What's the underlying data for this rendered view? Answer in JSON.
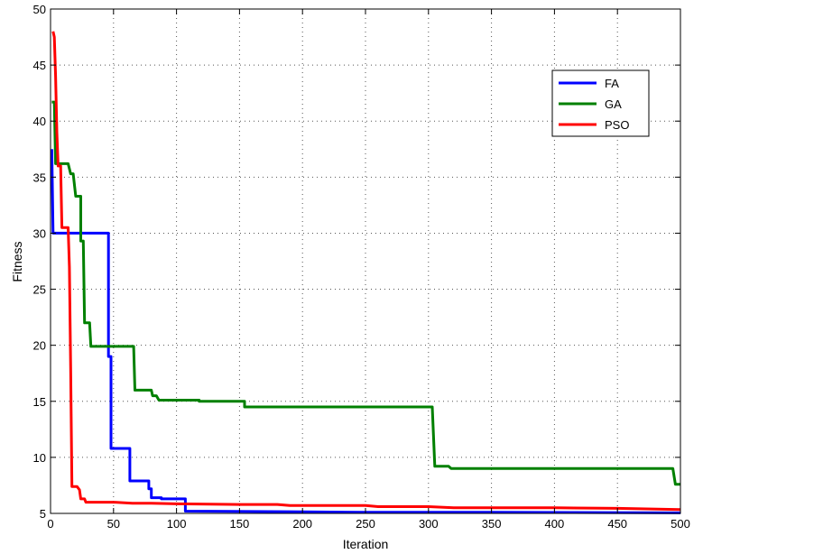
{
  "chart_data": {
    "type": "line",
    "xlabel": "Iteration",
    "ylabel": "Fitness",
    "xlim": [
      0,
      500
    ],
    "ylim": [
      5,
      50
    ],
    "xticks": [
      0,
      50,
      100,
      150,
      200,
      250,
      300,
      350,
      400,
      450,
      500
    ],
    "yticks": [
      5,
      10,
      15,
      20,
      25,
      30,
      35,
      40,
      45,
      50
    ],
    "grid": true,
    "legend_position": "top-right",
    "series": [
      {
        "name": "FA",
        "color": "#0000ff",
        "points": [
          [
            1,
            37.5
          ],
          [
            2,
            30
          ],
          [
            46,
            30
          ],
          [
            46,
            19
          ],
          [
            48,
            19
          ],
          [
            48,
            10.8
          ],
          [
            63,
            10.8
          ],
          [
            63,
            7.9
          ],
          [
            78,
            7.9
          ],
          [
            78,
            7.2
          ],
          [
            80,
            7.2
          ],
          [
            80,
            6.4
          ],
          [
            88,
            6.4
          ],
          [
            88,
            6.3
          ],
          [
            107,
            6.3
          ],
          [
            107,
            5.2
          ],
          [
            190,
            5.15
          ],
          [
            250,
            5.1
          ],
          [
            350,
            5.1
          ],
          [
            500,
            5.05
          ]
        ]
      },
      {
        "name": "GA",
        "color": "#008000",
        "points": [
          [
            1,
            41.7
          ],
          [
            3,
            41.7
          ],
          [
            4,
            36.2
          ],
          [
            14,
            36.2
          ],
          [
            16,
            35.3
          ],
          [
            18,
            35.3
          ],
          [
            20,
            33.3
          ],
          [
            24,
            33.3
          ],
          [
            24,
            29.3
          ],
          [
            26,
            29.3
          ],
          [
            27,
            22
          ],
          [
            31,
            22
          ],
          [
            32,
            19.9
          ],
          [
            66,
            19.9
          ],
          [
            67,
            16
          ],
          [
            80,
            16
          ],
          [
            81,
            15.5
          ],
          [
            84,
            15.5
          ],
          [
            86,
            15.1
          ],
          [
            118,
            15.1
          ],
          [
            118,
            15
          ],
          [
            154,
            15
          ],
          [
            154,
            14.5
          ],
          [
            303,
            14.5
          ],
          [
            305,
            9.2
          ],
          [
            316,
            9.2
          ],
          [
            318,
            9
          ],
          [
            494,
            9
          ],
          [
            496,
            7.6
          ],
          [
            500,
            7.6
          ]
        ]
      },
      {
        "name": "PSO",
        "color": "#ff0000",
        "points": [
          [
            2,
            48
          ],
          [
            3,
            47.5
          ],
          [
            4,
            44
          ],
          [
            5,
            39
          ],
          [
            6,
            36
          ],
          [
            8,
            36
          ],
          [
            9,
            30.5
          ],
          [
            14,
            30.5
          ],
          [
            15,
            27
          ],
          [
            16,
            18
          ],
          [
            17,
            7.4
          ],
          [
            21,
            7.4
          ],
          [
            23,
            7.1
          ],
          [
            24,
            6.3
          ],
          [
            27,
            6.3
          ],
          [
            28,
            6
          ],
          [
            50,
            6
          ],
          [
            65,
            5.9
          ],
          [
            80,
            5.9
          ],
          [
            100,
            5.85
          ],
          [
            150,
            5.8
          ],
          [
            180,
            5.8
          ],
          [
            190,
            5.7
          ],
          [
            250,
            5.7
          ],
          [
            260,
            5.6
          ],
          [
            300,
            5.6
          ],
          [
            320,
            5.5
          ],
          [
            400,
            5.5
          ],
          [
            450,
            5.45
          ],
          [
            500,
            5.35
          ]
        ]
      }
    ]
  }
}
